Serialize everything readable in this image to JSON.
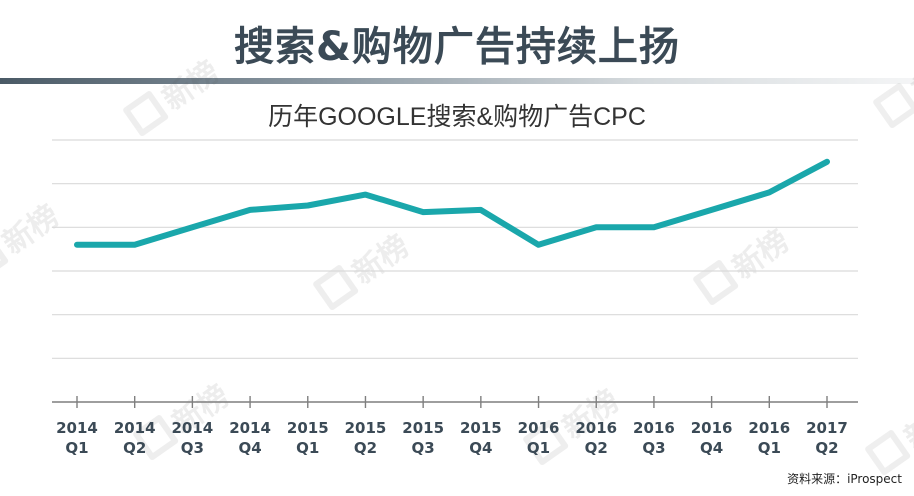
{
  "header": {
    "title": "搜索&购物广告持续上扬"
  },
  "watermark": {
    "text": "新榜"
  },
  "source": "资料来源：iProspect",
  "colors": {
    "line": "#1aa7ab",
    "grid": "#d9d9d9",
    "axis": "#7f7f7f",
    "header_text": "#3b4a56"
  },
  "chart_data": {
    "type": "line",
    "title": "历年GOOGLE搜索&购物广告CPC",
    "xlabel": "",
    "ylabel": "",
    "grid": true,
    "y_tick_labels_shown": false,
    "categories": [
      [
        "2014",
        "Q1"
      ],
      [
        "2014",
        "Q2"
      ],
      [
        "2014",
        "Q3"
      ],
      [
        "2014",
        "Q4"
      ],
      [
        "2015",
        "Q1"
      ],
      [
        "2015",
        "Q2"
      ],
      [
        "2015",
        "Q3"
      ],
      [
        "2015",
        "Q4"
      ],
      [
        "2016",
        "Q1"
      ],
      [
        "2016",
        "Q2"
      ],
      [
        "2016",
        "Q3"
      ],
      [
        "2016",
        "Q4"
      ],
      [
        "2016",
        "Q1"
      ],
      [
        "2017",
        "Q2"
      ]
    ],
    "series": [
      {
        "values": [
          3.6,
          3.6,
          4.0,
          4.4,
          4.5,
          4.75,
          4.35,
          4.4,
          3.6,
          4.0,
          4.0,
          4.4,
          4.8,
          5.5
        ]
      }
    ],
    "ylim": [
      0,
      6
    ],
    "gridlines": [
      1,
      2,
      3,
      4,
      5,
      6
    ]
  }
}
